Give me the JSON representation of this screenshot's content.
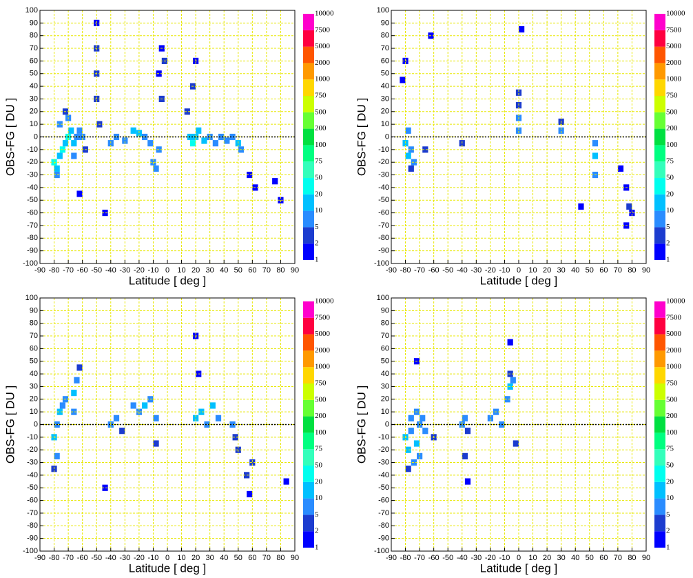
{
  "chart_data": [
    {
      "type": "heatmap",
      "xlabel": "Latitude  [ deg ]",
      "ylabel": "OBS-FG  [ DU ]",
      "xlim": [
        -90,
        90
      ],
      "ylim": [
        -100,
        100
      ],
      "xticks": [
        -90,
        -80,
        -70,
        -60,
        -50,
        -40,
        -30,
        -20,
        -10,
        0,
        10,
        20,
        30,
        40,
        50,
        60,
        70,
        80,
        90
      ],
      "yticks": [
        -100,
        -90,
        -80,
        -70,
        -60,
        -50,
        -40,
        -30,
        -20,
        -10,
        0,
        10,
        20,
        30,
        40,
        50,
        60,
        70,
        80,
        90,
        100
      ],
      "grid": true,
      "reference_line": 0,
      "cells": {
        "x": [
          -80,
          -78,
          -76,
          -74,
          -72,
          -70,
          -68,
          -66,
          -64,
          -62,
          -60,
          -78,
          -76,
          -72,
          -70,
          -66,
          -50,
          -50,
          -50,
          -50,
          -48,
          -40,
          -36,
          -30,
          -24,
          -20,
          -16,
          -12,
          -10,
          -8,
          -6,
          -4,
          -2,
          14,
          16,
          18,
          20,
          22,
          26,
          30,
          34,
          38,
          42,
          46,
          50,
          52,
          -4,
          -6,
          18,
          20,
          -62,
          -58,
          -44,
          58,
          62,
          76,
          80
        ],
        "y": [
          -20,
          -25,
          -15,
          -10,
          -5,
          0,
          5,
          -5,
          0,
          5,
          0,
          -30,
          10,
          20,
          15,
          -15,
          30,
          50,
          70,
          90,
          10,
          -5,
          0,
          -3,
          5,
          3,
          0,
          -5,
          -20,
          -25,
          -10,
          30,
          60,
          20,
          0,
          -5,
          0,
          5,
          -3,
          0,
          -5,
          0,
          -3,
          0,
          -5,
          -10,
          70,
          50,
          40,
          60,
          -45,
          -10,
          -60,
          -30,
          -40,
          -35,
          -50
        ],
        "values": [
          20,
          10,
          10,
          20,
          10,
          20,
          10,
          10,
          5,
          5,
          5,
          5,
          5,
          2,
          5,
          5,
          2,
          2,
          2,
          1,
          2,
          5,
          5,
          5,
          10,
          10,
          5,
          5,
          5,
          5,
          5,
          2,
          2,
          2,
          10,
          20,
          10,
          10,
          10,
          5,
          5,
          5,
          5,
          5,
          10,
          5,
          1,
          1,
          2,
          1,
          1,
          2,
          1,
          1,
          1,
          1,
          1
        ]
      },
      "colorbar": {
        "levels": [
          1,
          2,
          5,
          10,
          20,
          50,
          75,
          100,
          200,
          500,
          750,
          1000,
          2000,
          5000,
          7500,
          10000
        ],
        "colors": [
          "#0000ff",
          "#1c3ccf",
          "#2a8cff",
          "#00c0ff",
          "#00ffee",
          "#33ffbb",
          "#00ff80",
          "#00e040",
          "#66ff33",
          "#ccff00",
          "#ffd700",
          "#ff9900",
          "#ff5500",
          "#ff0040",
          "#ff00cc"
        ]
      }
    },
    {
      "type": "heatmap",
      "xlabel": "Latitude  [ deg ]",
      "ylabel": "OBS-FG  [ DU ]",
      "xlim": [
        -90,
        90
      ],
      "ylim": [
        -100,
        100
      ],
      "xticks": [
        -90,
        -80,
        -70,
        -60,
        -50,
        -40,
        -30,
        -20,
        -10,
        0,
        10,
        20,
        30,
        40,
        50,
        60,
        70,
        80,
        90
      ],
      "yticks": [
        -100,
        -90,
        -80,
        -70,
        -60,
        -50,
        -40,
        -30,
        -20,
        -10,
        0,
        10,
        20,
        30,
        40,
        50,
        60,
        70,
        80,
        90,
        100
      ],
      "grid": true,
      "reference_line": 0,
      "cells": {
        "x": [
          -80,
          -78,
          -76,
          -74,
          -78,
          -76,
          -66,
          -40,
          0,
          0,
          0,
          0,
          30,
          30,
          54,
          54,
          54,
          72,
          76,
          78,
          80,
          76,
          -82,
          -80,
          -62,
          2,
          44
        ],
        "y": [
          -5,
          -15,
          -10,
          -20,
          5,
          -25,
          -10,
          -5,
          5,
          15,
          25,
          35,
          5,
          12,
          -5,
          -15,
          -30,
          -25,
          -40,
          -55,
          -60,
          -70,
          45,
          60,
          80,
          85,
          -55
        ],
        "values": [
          10,
          10,
          5,
          5,
          5,
          2,
          2,
          2,
          5,
          5,
          2,
          2,
          5,
          2,
          5,
          10,
          5,
          1,
          1,
          2,
          1,
          1,
          1,
          1,
          1,
          1,
          1
        ]
      },
      "colorbar": {
        "levels": [
          1,
          2,
          5,
          10,
          20,
          50,
          75,
          100,
          200,
          500,
          750,
          1000,
          2000,
          5000,
          7500,
          10000
        ],
        "colors": [
          "#0000ff",
          "#1c3ccf",
          "#2a8cff",
          "#00c0ff",
          "#00ffee",
          "#33ffbb",
          "#00ff80",
          "#00e040",
          "#66ff33",
          "#ccff00",
          "#ffd700",
          "#ff9900",
          "#ff5500",
          "#ff0040",
          "#ff00cc"
        ]
      }
    },
    {
      "type": "heatmap",
      "xlabel": "Latitude  [ deg ]",
      "ylabel": "OBS-FG  [ DU ]",
      "xlim": [
        -90,
        90
      ],
      "ylim": [
        -100,
        100
      ],
      "xticks": [
        -90,
        -80,
        -70,
        -60,
        -50,
        -40,
        -30,
        -20,
        -10,
        0,
        10,
        20,
        30,
        40,
        50,
        60,
        70,
        80,
        90
      ],
      "yticks": [
        -100,
        -90,
        -80,
        -70,
        -60,
        -50,
        -40,
        -30,
        -20,
        -10,
        0,
        10,
        20,
        30,
        40,
        50,
        60,
        70,
        80,
        90,
        100
      ],
      "grid": true,
      "reference_line": 0,
      "cells": {
        "x": [
          -80,
          -78,
          -76,
          -74,
          -72,
          -78,
          -80,
          -66,
          -64,
          -62,
          -66,
          -40,
          -36,
          -32,
          -24,
          -20,
          -16,
          -12,
          -8,
          -8,
          20,
          24,
          28,
          32,
          36,
          46,
          48,
          50,
          56,
          58,
          60,
          22,
          20,
          -44,
          84
        ],
        "y": [
          -10,
          0,
          10,
          15,
          20,
          -25,
          -35,
          25,
          35,
          45,
          10,
          0,
          5,
          -5,
          15,
          10,
          15,
          20,
          5,
          -15,
          5,
          10,
          0,
          15,
          5,
          0,
          -10,
          -20,
          -40,
          -55,
          -30,
          40,
          70,
          -50,
          -45
        ],
        "values": [
          10,
          5,
          10,
          5,
          5,
          5,
          2,
          10,
          5,
          2,
          5,
          5,
          5,
          2,
          5,
          5,
          10,
          5,
          5,
          2,
          10,
          10,
          5,
          10,
          5,
          5,
          2,
          2,
          2,
          1,
          2,
          1,
          1,
          1,
          1
        ]
      },
      "colorbar": {
        "levels": [
          1,
          2,
          5,
          10,
          20,
          50,
          75,
          100,
          200,
          500,
          750,
          1000,
          2000,
          5000,
          7500,
          10000
        ],
        "colors": [
          "#0000ff",
          "#1c3ccf",
          "#2a8cff",
          "#00c0ff",
          "#00ffee",
          "#33ffbb",
          "#00ff80",
          "#00e040",
          "#66ff33",
          "#ccff00",
          "#ffd700",
          "#ff9900",
          "#ff5500",
          "#ff0040",
          "#ff00cc"
        ]
      }
    },
    {
      "type": "heatmap",
      "xlabel": "Latitude  [ deg ]",
      "ylabel": "OBS-FG  [ DU ]",
      "xlim": [
        -90,
        90
      ],
      "ylim": [
        -100,
        100
      ],
      "xticks": [
        -90,
        -80,
        -70,
        -60,
        -50,
        -40,
        -30,
        -20,
        -10,
        0,
        10,
        20,
        30,
        40,
        50,
        60,
        70,
        80,
        90
      ],
      "yticks": [
        -100,
        -90,
        -80,
        -70,
        -60,
        -50,
        -40,
        -30,
        -20,
        -10,
        0,
        10,
        20,
        30,
        40,
        50,
        60,
        70,
        80,
        90,
        100
      ],
      "grid": true,
      "reference_line": 0,
      "cells": {
        "x": [
          -80,
          -78,
          -76,
          -74,
          -72,
          -70,
          -68,
          -78,
          -76,
          -72,
          -70,
          -66,
          -60,
          -40,
          -38,
          -36,
          -20,
          -16,
          -12,
          -8,
          -6,
          -4,
          -6,
          -2,
          -38,
          -36,
          -72,
          -6
        ],
        "y": [
          -10,
          -20,
          -5,
          -30,
          -15,
          0,
          5,
          -35,
          5,
          10,
          -25,
          -5,
          -10,
          0,
          5,
          -5,
          5,
          10,
          0,
          20,
          30,
          35,
          40,
          -15,
          -25,
          -45,
          50,
          65
        ],
        "values": [
          10,
          10,
          5,
          5,
          10,
          5,
          5,
          2,
          5,
          5,
          5,
          5,
          2,
          5,
          5,
          2,
          5,
          5,
          5,
          5,
          10,
          5,
          2,
          2,
          2,
          1,
          1,
          1
        ]
      },
      "colorbar": {
        "levels": [
          1,
          2,
          5,
          10,
          20,
          50,
          75,
          100,
          200,
          500,
          750,
          1000,
          2000,
          5000,
          7500,
          10000
        ],
        "colors": [
          "#0000ff",
          "#1c3ccf",
          "#2a8cff",
          "#00c0ff",
          "#00ffee",
          "#33ffbb",
          "#00ff80",
          "#00e040",
          "#66ff33",
          "#ccff00",
          "#ffd700",
          "#ff9900",
          "#ff5500",
          "#ff0040",
          "#ff00cc"
        ]
      }
    }
  ]
}
